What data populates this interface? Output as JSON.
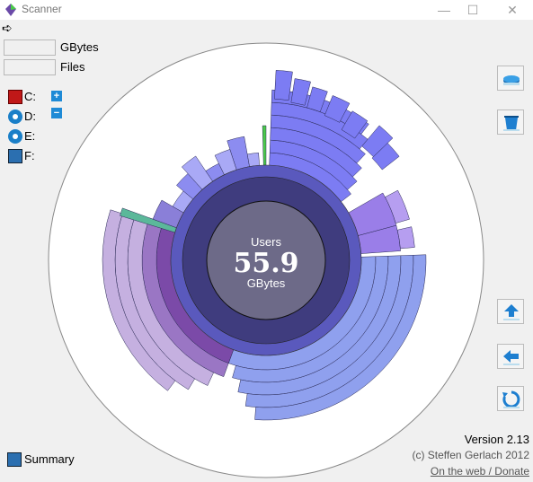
{
  "window": {
    "title": "Scanner",
    "minimize": "—",
    "maximize": "☐",
    "close": "✕"
  },
  "toolbar": {
    "back_glyph": "➪"
  },
  "stats": {
    "size_value": "",
    "size_unit": "GBytes",
    "files_value": "",
    "files_unit": "Files"
  },
  "drives": [
    {
      "label": "C:",
      "icon": "hdd-icon"
    },
    {
      "label": "D:",
      "icon": "cd-icon"
    },
    {
      "label": "E:",
      "icon": "cd-icon"
    },
    {
      "label": "F:",
      "icon": "network-drive-icon"
    }
  ],
  "zoom_controls": {
    "plus": "+",
    "minus": "−"
  },
  "center": {
    "folder": "Users",
    "size": "55.9",
    "unit": "GBytes"
  },
  "summary": {
    "label": "Summary"
  },
  "footer": {
    "version": "Version 2.13",
    "copyright": "(c) Steffen Gerlach 2012",
    "link": "On the web / Donate"
  },
  "colors": {
    "center_fill": "#6d6a88",
    "ring1": "#3f3c7e",
    "ring2": "#5858bb",
    "blue_seg": "#7c7cf3",
    "blue_light": "#8fa0ee",
    "purple": "#7b4aa8",
    "lilac": "#c5b0e0",
    "green": "#4ac94a",
    "teal": "#5bb89a"
  }
}
